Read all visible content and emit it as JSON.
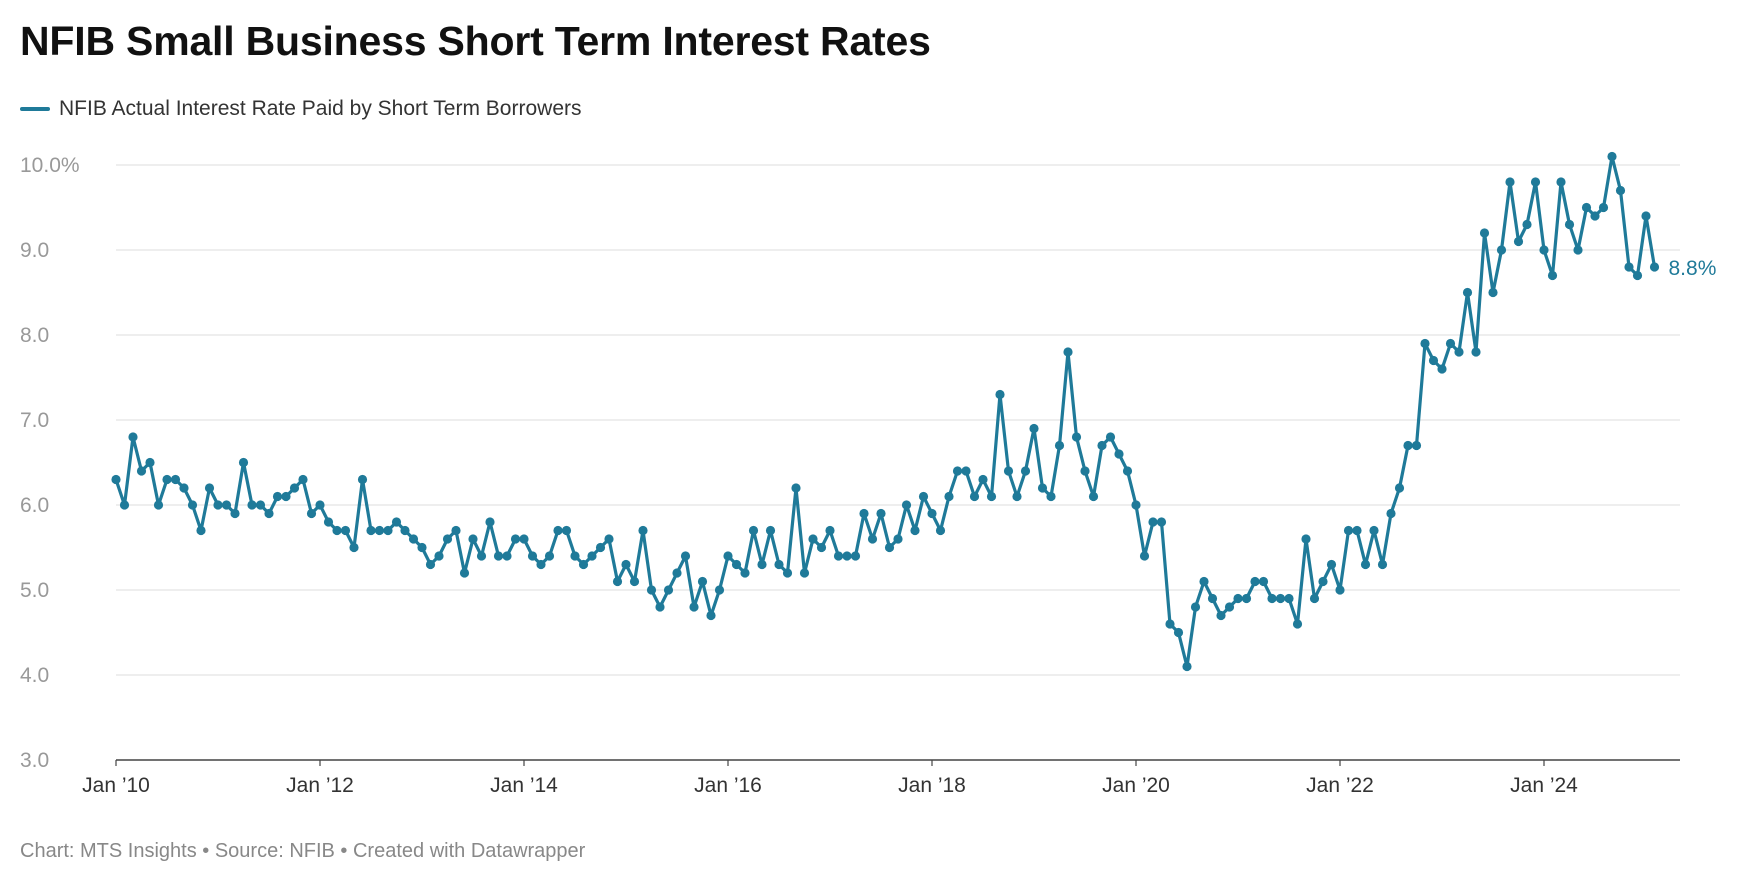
{
  "title": "NFIB Small Business Short Term Interest Rates",
  "footer": "Chart: MTS Insights • Source: NFIB • Created with Datawrapper",
  "colors": {
    "series": "#1f7a99",
    "grid": "#e3e3e3",
    "axis": "#444444"
  },
  "chart_data": {
    "type": "line",
    "title": "NFIB Small Business Short Term Interest Rates",
    "xlabel": "",
    "ylabel": "",
    "ylim": [
      3,
      10
    ],
    "y_ticks": [
      {
        "value": 10,
        "label": "10.0%"
      },
      {
        "value": 9,
        "label": "9.0"
      },
      {
        "value": 8,
        "label": "8.0"
      },
      {
        "value": 7,
        "label": "7.0"
      },
      {
        "value": 6,
        "label": "6.0"
      },
      {
        "value": 5,
        "label": "5.0"
      },
      {
        "value": 4,
        "label": "4.0"
      },
      {
        "value": 3,
        "label": "3.0"
      }
    ],
    "x_ticks": [
      {
        "date": "2010-01",
        "label": "Jan ’10"
      },
      {
        "date": "2012-01",
        "label": "Jan ’12"
      },
      {
        "date": "2014-01",
        "label": "Jan ’14"
      },
      {
        "date": "2016-01",
        "label": "Jan ’16"
      },
      {
        "date": "2018-01",
        "label": "Jan ’18"
      },
      {
        "date": "2020-01",
        "label": "Jan ’20"
      },
      {
        "date": "2022-01",
        "label": "Jan ’22"
      },
      {
        "date": "2024-01",
        "label": "Jan ’24"
      }
    ],
    "grid": true,
    "legend_position": "top-left",
    "end_label": "8.8%",
    "series": [
      {
        "name": "NFIB Actual Interest Rate Paid by Short Term Borrowers",
        "color": "#1f7a99",
        "start": "2010-01",
        "frequency": "monthly",
        "values": [
          6.3,
          6.0,
          6.8,
          6.4,
          6.5,
          6.0,
          6.3,
          6.3,
          6.2,
          6.0,
          5.7,
          6.2,
          6.0,
          6.0,
          5.9,
          6.5,
          6.0,
          6.0,
          5.9,
          6.1,
          6.1,
          6.2,
          6.3,
          5.9,
          6.0,
          5.8,
          5.7,
          5.7,
          5.5,
          6.3,
          5.7,
          5.7,
          5.7,
          5.8,
          5.7,
          5.6,
          5.5,
          5.3,
          5.4,
          5.6,
          5.7,
          5.2,
          5.6,
          5.4,
          5.8,
          5.4,
          5.4,
          5.6,
          5.6,
          5.4,
          5.3,
          5.4,
          5.7,
          5.7,
          5.4,
          5.3,
          5.4,
          5.5,
          5.6,
          5.1,
          5.3,
          5.1,
          5.7,
          5.0,
          4.8,
          5.0,
          5.2,
          5.4,
          4.8,
          5.1,
          4.7,
          5.0,
          5.4,
          5.3,
          5.2,
          5.7,
          5.3,
          5.7,
          5.3,
          5.2,
          6.2,
          5.2,
          5.6,
          5.5,
          5.7,
          5.4,
          5.4,
          5.4,
          5.9,
          5.6,
          5.9,
          5.5,
          5.6,
          6.0,
          5.7,
          6.1,
          5.9,
          5.7,
          6.1,
          6.4,
          6.4,
          6.1,
          6.3,
          6.1,
          7.3,
          6.4,
          6.1,
          6.4,
          6.9,
          6.2,
          6.1,
          6.7,
          7.8,
          6.8,
          6.4,
          6.1,
          6.7,
          6.8,
          6.6,
          6.4,
          6.0,
          5.4,
          5.8,
          5.8,
          4.6,
          4.5,
          4.1,
          4.8,
          5.1,
          4.9,
          4.7,
          4.8,
          4.9,
          4.9,
          5.1,
          5.1,
          4.9,
          4.9,
          4.9,
          4.6,
          5.6,
          4.9,
          5.1,
          5.3,
          5.0,
          5.7,
          5.7,
          5.3,
          5.7,
          5.3,
          5.9,
          6.2,
          6.7,
          6.7,
          7.9,
          7.7,
          7.6,
          7.9,
          7.8,
          8.5,
          7.8,
          9.2,
          8.5,
          9.0,
          9.8,
          9.1,
          9.3,
          9.8,
          9.0,
          8.7,
          9.8,
          9.3,
          9.0,
          9.5,
          9.4,
          9.5,
          10.1,
          9.7,
          8.8,
          8.7,
          9.4,
          8.8
        ]
      }
    ]
  }
}
